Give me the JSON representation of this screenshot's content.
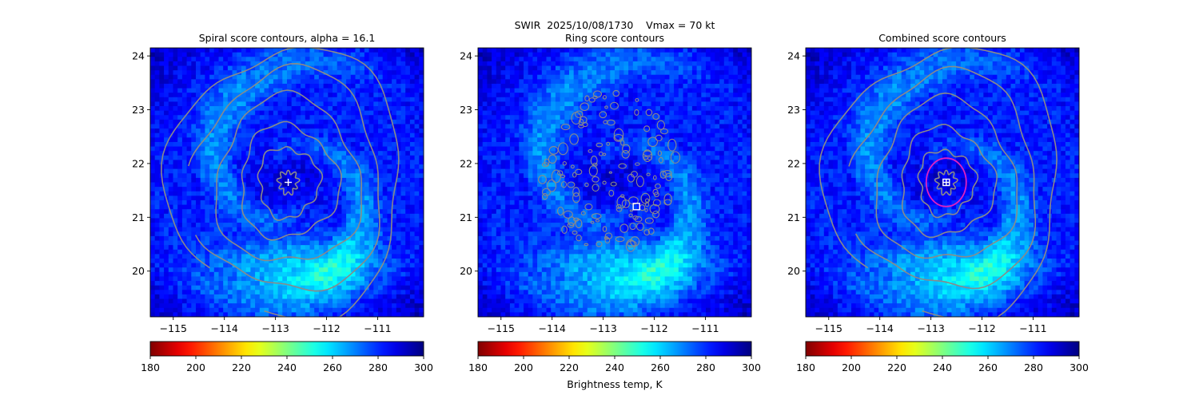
{
  "suptitle_line1": "SWIR  2025/10/08/1730    Vmax = 70 kt",
  "colorbar_label": "Brightness temp, K",
  "colorbar_ticks": [
    180,
    200,
    220,
    240,
    260,
    280,
    300
  ],
  "colormap": "jet_reversed",
  "contour_color": "#8a8a8a",
  "marker_color": "#ffffff",
  "ring_color": "#e020c0",
  "chart_data": [
    {
      "type": "heatmap",
      "title": "Spiral score contours, alpha = 16.1",
      "xlabel": "",
      "ylabel": "",
      "x_ticks": [
        -115,
        -114,
        -113,
        -112,
        -111
      ],
      "x_tick_labels": [
        "−115",
        "−114",
        "−113",
        "−112",
        "−111"
      ],
      "y_ticks": [
        20,
        21,
        22,
        23,
        24
      ],
      "y_tick_labels": [
        "20",
        "21",
        "22",
        "23",
        "24"
      ],
      "xlim": [
        -115.45,
        -110.1
      ],
      "ylim": [
        19.15,
        24.15
      ],
      "center_marker": {
        "symbol": "plus",
        "lon": -112.75,
        "lat": 21.65
      },
      "contour_radii_deg": [
        0.2,
        0.65,
        1.05,
        1.55,
        2.05,
        2.5
      ]
    },
    {
      "type": "heatmap",
      "title": "Ring score contours",
      "xlabel": "",
      "ylabel": "",
      "x_ticks": [
        -115,
        -114,
        -113,
        -112,
        -111
      ],
      "x_tick_labels": [
        "−115",
        "−114",
        "−113",
        "−112",
        "−111"
      ],
      "y_ticks": [
        20,
        21,
        22,
        23,
        24
      ],
      "y_tick_labels": [
        "20",
        "21",
        "22",
        "23",
        "24"
      ],
      "xlim": [
        -115.45,
        -110.1
      ],
      "ylim": [
        19.15,
        24.15
      ],
      "center_marker": {
        "symbol": "square",
        "lon": -112.35,
        "lat": 21.2
      },
      "contour_region": {
        "lon": -112.9,
        "lat": 21.85,
        "radius_deg": 1.55
      }
    },
    {
      "type": "heatmap",
      "title": "Combined score contours",
      "xlabel": "",
      "ylabel": "",
      "x_ticks": [
        -115,
        -114,
        -113,
        -112,
        -111
      ],
      "x_tick_labels": [
        "−115",
        "−114",
        "−113",
        "−112",
        "−111"
      ],
      "y_ticks": [
        20,
        21,
        22,
        23,
        24
      ],
      "y_tick_labels": [
        "20",
        "21",
        "22",
        "23",
        "24"
      ],
      "xlim": [
        -115.45,
        -110.1
      ],
      "ylim": [
        19.15,
        24.15
      ],
      "center_marker": {
        "symbol": "square-plus",
        "lon": -112.7,
        "lat": 21.65
      },
      "ring": {
        "lon": -112.7,
        "lat": 21.65,
        "radius_deg": 0.45
      },
      "contour_radii_deg": [
        0.2,
        0.6,
        1.0,
        1.5,
        2.0,
        2.5
      ]
    }
  ]
}
